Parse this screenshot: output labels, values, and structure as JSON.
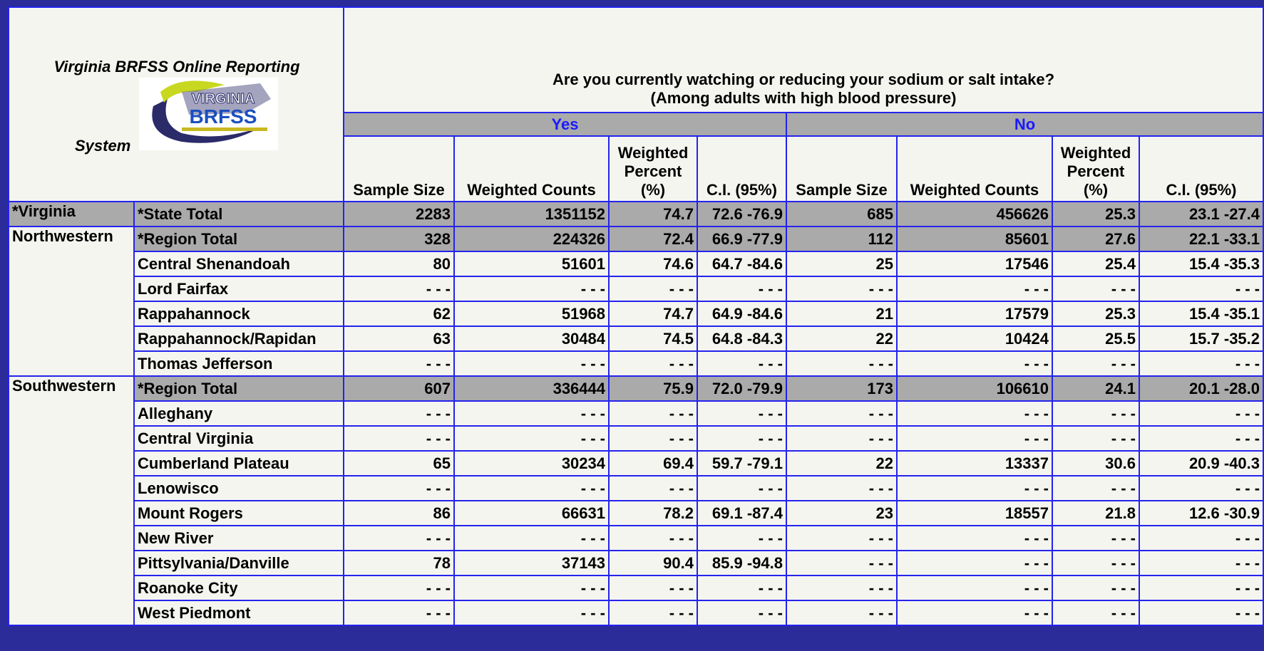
{
  "table": {
    "title_lines": [
      "Virginia BRFSS Online Reporting",
      "System"
    ],
    "logo_text": [
      "VIRGINIA",
      "BRFSS"
    ],
    "question": "Are you currently watching or reducing your sodium or salt intake?",
    "subtitle": "(Among adults with high blood pressure)",
    "groups": [
      "Yes",
      "No"
    ],
    "columns": [
      "Sample Size",
      "Weighted Counts",
      "Weighted Percent (%)",
      "C.I. (95%)",
      "Sample Size",
      "Weighted Counts",
      "Weighted Percent (%)",
      "C.I. (95%)"
    ],
    "regions": [
      {
        "name": "*Virginia",
        "rows": [
          {
            "label": "*State Total",
            "highlight": true,
            "cells": [
              2283,
              1351152,
              74.7,
              "72.6 -76.9",
              685,
              456626,
              25.3,
              "23.1 -27.4"
            ]
          }
        ]
      },
      {
        "name": "Northwestern",
        "rows": [
          {
            "label": "*Region Total",
            "highlight": true,
            "cells": [
              328,
              224326,
              72.4,
              "66.9 -77.9",
              112,
              85601,
              27.6,
              "22.1 -33.1"
            ]
          },
          {
            "label": "Central Shenandoah",
            "highlight": false,
            "cells": [
              80,
              51601,
              74.6,
              "64.7 -84.6",
              25,
              17546,
              25.4,
              "15.4 -35.3"
            ]
          },
          {
            "label": "Lord Fairfax",
            "highlight": false,
            "cells": [
              "- - -",
              "- - -",
              "- - -",
              "- - -",
              "- - -",
              "- - -",
              "- - -",
              "- - -"
            ]
          },
          {
            "label": "Rappahannock",
            "highlight": false,
            "cells": [
              62,
              51968,
              74.7,
              "64.9 -84.6",
              21,
              17579,
              25.3,
              "15.4 -35.1"
            ]
          },
          {
            "label": "Rappahannock/Rapidan",
            "highlight": false,
            "cells": [
              63,
              30484,
              74.5,
              "64.8 -84.3",
              22,
              10424,
              25.5,
              "15.7 -35.2"
            ]
          },
          {
            "label": "Thomas Jefferson",
            "highlight": false,
            "cells": [
              "- - -",
              "- - -",
              "- - -",
              "- - -",
              "- - -",
              "- - -",
              "- - -",
              "- - -"
            ]
          }
        ]
      },
      {
        "name": "Southwestern",
        "rows": [
          {
            "label": "*Region Total",
            "highlight": true,
            "cells": [
              607,
              336444,
              75.9,
              "72.0 -79.9",
              173,
              106610,
              24.1,
              "20.1 -28.0"
            ]
          },
          {
            "label": "Alleghany",
            "highlight": false,
            "cells": [
              "- - -",
              "- - -",
              "- - -",
              "- - -",
              "- - -",
              "- - -",
              "- - -",
              "- - -"
            ]
          },
          {
            "label": "Central Virginia",
            "highlight": false,
            "cells": [
              "- - -",
              "- - -",
              "- - -",
              "- - -",
              "- - -",
              "- - -",
              "- - -",
              "- - -"
            ]
          },
          {
            "label": "Cumberland Plateau",
            "highlight": false,
            "cells": [
              65,
              30234,
              69.4,
              "59.7 -79.1",
              22,
              13337,
              30.6,
              "20.9 -40.3"
            ]
          },
          {
            "label": "Lenowisco",
            "highlight": false,
            "cells": [
              "- - -",
              "- - -",
              "- - -",
              "- - -",
              "- - -",
              "- - -",
              "- - -",
              "- - -"
            ]
          },
          {
            "label": "Mount Rogers",
            "highlight": false,
            "cells": [
              86,
              66631,
              78.2,
              "69.1 -87.4",
              23,
              18557,
              21.8,
              "12.6 -30.9"
            ]
          },
          {
            "label": "New River",
            "highlight": false,
            "cells": [
              "- - -",
              "- - -",
              "- - -",
              "- - -",
              "- - -",
              "- - -",
              "- - -",
              "- - -"
            ]
          },
          {
            "label": "Pittsylvania/Danville",
            "highlight": false,
            "cells": [
              78,
              37143,
              90.4,
              "85.9 -94.8",
              "- - -",
              "- - -",
              "- - -",
              "- - -"
            ]
          },
          {
            "label": "Roanoke City",
            "highlight": false,
            "cells": [
              "- - -",
              "- - -",
              "- - -",
              "- - -",
              "- - -",
              "- - -",
              "- - -",
              "- - -"
            ]
          },
          {
            "label": "West Piedmont",
            "highlight": false,
            "cells": [
              "- - -",
              "- - -",
              "- - -",
              "- - -",
              "- - -",
              "- - -",
              "- - -",
              "- - -"
            ]
          }
        ]
      }
    ]
  }
}
